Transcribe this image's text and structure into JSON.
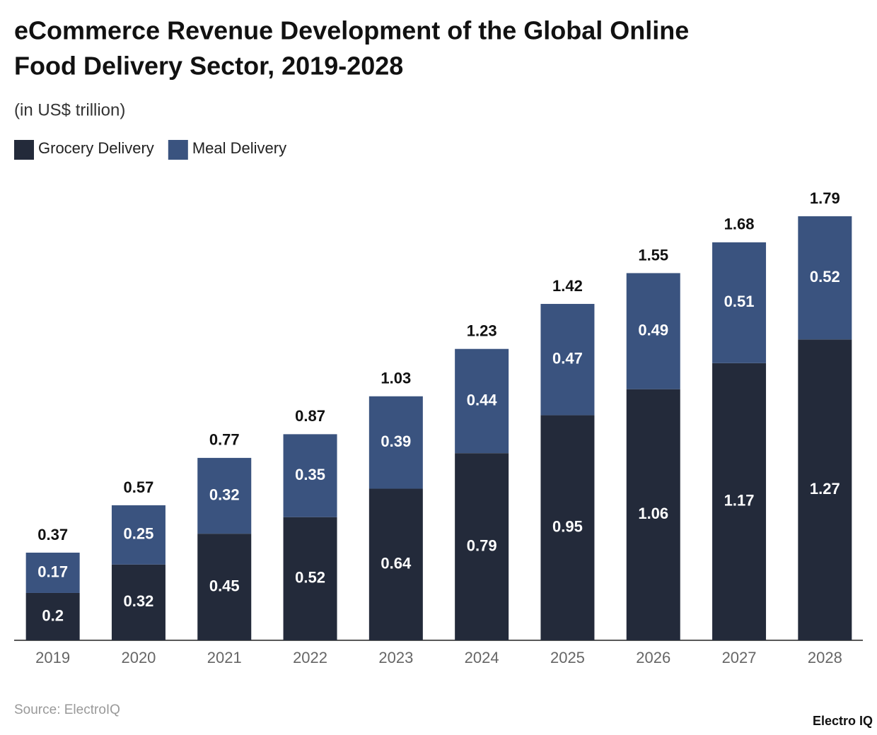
{
  "chart_data": {
    "type": "stacked-bar",
    "title": [
      "eCommerce Revenue Development of the Global Online",
      "Food Delivery Sector, 2019-2028"
    ],
    "subtitle": "(in US$ trillion)",
    "categories": [
      "2019",
      "2020",
      "2021",
      "2022",
      "2023",
      "2024",
      "2025",
      "2026",
      "2027",
      "2028"
    ],
    "series": [
      {
        "name": "Grocery Delivery",
        "color": "#232a3a",
        "values": [
          0.2,
          0.32,
          0.45,
          0.52,
          0.64,
          0.79,
          0.95,
          1.06,
          1.17,
          1.27
        ]
      },
      {
        "name": "Meal Delivery",
        "color": "#3a537f",
        "values": [
          0.17,
          0.25,
          0.32,
          0.35,
          0.39,
          0.44,
          0.47,
          0.49,
          0.51,
          0.52
        ]
      }
    ],
    "totals": [
      0.37,
      0.57,
      0.77,
      0.87,
      1.03,
      1.23,
      1.42,
      1.55,
      1.68,
      1.79
    ],
    "source": "Source: ElectroIQ",
    "brand": "Electro IQ"
  }
}
